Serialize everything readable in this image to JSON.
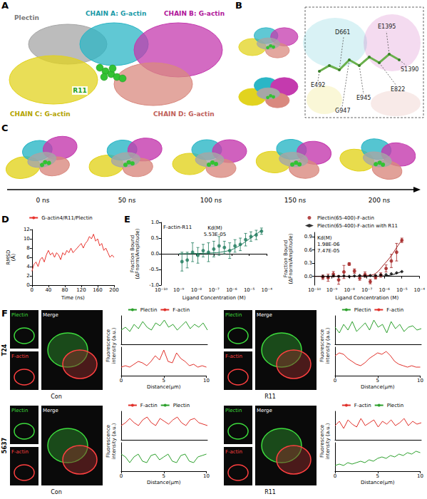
{
  "figure": {
    "panel_letters": [
      "A",
      "B",
      "C",
      "D",
      "E",
      "F"
    ],
    "A": {
      "labels": [
        "Plectin",
        "CHAIN A: G-actin",
        "CHAIN B: G-actin",
        "CHAIN C: G-actin",
        "R11",
        "CHAIN D: G-actin"
      ]
    },
    "B": {
      "residues": [
        "D661",
        "E1395",
        "S1390",
        "E492",
        "E822",
        "E945",
        "G947"
      ]
    },
    "C": {
      "times": [
        "0 ns",
        "50 ns",
        "100 ns",
        "150 ns",
        "200 ns"
      ]
    },
    "F": {
      "rows": [
        {
          "cell": "T24",
          "conditions": [
            "Con",
            "R11"
          ]
        },
        {
          "cell": "5637",
          "conditions": [
            "Con",
            "R11"
          ]
        }
      ],
      "channels": [
        "Plectin",
        "F-actin"
      ],
      "merge": "Merge"
    }
  },
  "chart_data": [
    {
      "type": "line",
      "x_label": "Time (ns)",
      "y_label": "RMSD (Å)",
      "xlim": [
        0,
        200
      ],
      "xticks": [
        0,
        40,
        80,
        120,
        160,
        200
      ],
      "ylim": [
        0,
        12
      ],
      "yticks": [
        0,
        2,
        4,
        6,
        8,
        10,
        12
      ],
      "legend": "top",
      "x": [
        0,
        5,
        10,
        15,
        20,
        25,
        30,
        35,
        40,
        45,
        50,
        55,
        60,
        65,
        70,
        75,
        80,
        85,
        90,
        95,
        100,
        105,
        110,
        115,
        120,
        125,
        130,
        135,
        140,
        145,
        150,
        155,
        160,
        165,
        170,
        175,
        180,
        185,
        190,
        195,
        200
      ],
      "series": [
        {
          "name": "G-actin4/R11/Plectin",
          "color": "#e8332e",
          "values": [
            3,
            4.5,
            5,
            4,
            5.5,
            6,
            5,
            6.5,
            7.5,
            6.5,
            7,
            6,
            7,
            6.5,
            5.5,
            7,
            6.5,
            7.5,
            7,
            8,
            7,
            7.5,
            8,
            8.5,
            9,
            8,
            9,
            9.5,
            10.5,
            10,
            11,
            9.5,
            10,
            8.5,
            9,
            7.5,
            8,
            7,
            6,
            6.5,
            6
          ]
        }
      ]
    },
    {
      "type": "scatter",
      "title": "F-actin-R11",
      "log": "x",
      "x_label": "Ligand Concentration (M)",
      "y_label": "Fraction Bound (ΔFnorm/Amplitude)",
      "xlim": [
        1e-10,
        0.0001
      ],
      "xticks": [
        {
          "value": 1e-10,
          "label": "10⁻¹⁰"
        },
        {
          "value": 1e-09,
          "label": "10⁻⁹"
        },
        {
          "value": 1e-08,
          "label": "10⁻⁸"
        },
        {
          "value": 1e-07,
          "label": "10⁻⁷"
        },
        {
          "value": 1e-06,
          "label": "10⁻⁶"
        },
        {
          "value": 1e-05,
          "label": "10⁻⁵"
        },
        {
          "value": 0.0001,
          "label": "10⁻⁴"
        }
      ],
      "ylim": [
        -1,
        1
      ],
      "yticks": [
        {
          "value": -1,
          "label": "-1.0"
        },
        -0.5,
        {
          "value": 0,
          "label": "0.0"
        },
        0.5,
        {
          "value": 1,
          "label": "1.0"
        }
      ],
      "annotations": [
        "Kd(M)",
        "5.53E-05"
      ],
      "series": [
        {
          "type": "scatter",
          "color": "#1e7b5c",
          "marker": "circle",
          "x": [
            1.53e-09,
            3.05e-09,
            6.1e-09,
            1.22e-08,
            2.44e-08,
            4.88e-08,
            9.77e-08,
            1.95e-07,
            3.91e-07,
            7.81e-07,
            1.56e-06,
            3.13e-06,
            6.25e-06,
            1.25e-05,
            2.5e-05,
            5e-05
          ],
          "values": [
            -0.25,
            -0.2,
            0.05,
            -0.05,
            0.1,
            0.05,
            0.15,
            0.25,
            0.2,
            0.1,
            0.25,
            0.3,
            0.45,
            0.55,
            0.6,
            0.72
          ],
          "errors": [
            0.3,
            0.25,
            0.3,
            0.25,
            0.2,
            0.3,
            0.25,
            0.3,
            0.2,
            0.25,
            0.2,
            0.2,
            0.2,
            0.15,
            0.15,
            0.1
          ]
        },
        {
          "type": "line",
          "color": "#1e7b5c",
          "x": [
            1e-09,
            1e-08,
            1e-07,
            3e-07,
            1e-06,
            3e-06,
            1e-05,
            3e-05,
            5e-05
          ],
          "values": [
            0,
            0.01,
            0.03,
            0.06,
            0.13,
            0.27,
            0.47,
            0.66,
            0.74
          ]
        }
      ]
    },
    {
      "type": "scatter",
      "log": "x",
      "x_label": "Ligand Concentration (M)",
      "y_label": "Fraction Bound (ΔFnorm/Amplitude)",
      "xlim": [
        1e-10,
        0.0001
      ],
      "xticks": [
        {
          "value": 1e-10,
          "label": "10⁻¹⁰"
        },
        {
          "value": 1e-09,
          "label": "10⁻⁹"
        },
        {
          "value": 1e-08,
          "label": "10⁻⁸"
        },
        {
          "value": 1e-07,
          "label": "10⁻⁷"
        },
        {
          "value": 1e-06,
          "label": "10⁻⁶"
        },
        {
          "value": 1e-05,
          "label": "10⁻⁵"
        },
        {
          "value": 0.0001,
          "label": "10⁻⁴"
        }
      ],
      "ylim": [
        -0.2,
        1
      ],
      "yticks": [
        {
          "value": 0,
          "label": "0.0"
        },
        0.3,
        0.6,
        0.9
      ],
      "legend": "top",
      "annotations": [
        "Kd(M)",
        "1.98E-06",
        "7.47E-05"
      ],
      "series": [
        {
          "type": "scatter",
          "name": "Plectin(65-400)-F-actin",
          "color": "#a01c1c",
          "marker": "circle",
          "x": [
            3.05e-10,
            6.1e-10,
            1.22e-09,
            2.44e-09,
            4.88e-09,
            9.77e-09,
            1.95e-08,
            3.91e-08,
            7.81e-08,
            1.56e-07,
            3.13e-07,
            6.25e-07,
            1.25e-06,
            2.5e-06,
            5e-06,
            1e-05
          ],
          "values": [
            -0.02,
            -0.03,
            0.05,
            -0.08,
            0.1,
            0.28,
            0.12,
            -0.04,
            0.04,
            -0.12,
            -0.02,
            0.03,
            0.18,
            0.35,
            0.55,
            0.82
          ],
          "errors": [
            0.05,
            0.08,
            0.06,
            0.1,
            0.15,
            0.03,
            0.05,
            0.05,
            0.06,
            0.05,
            0.04,
            0.05,
            0.08,
            0.15,
            0.2,
            0.05
          ]
        },
        {
          "type": "scatter",
          "name": "Plectin(65-400)-F-actin with R11",
          "color": "#000000",
          "marker": "diamond",
          "x": [
            3.05e-10,
            6.1e-10,
            1.22e-09,
            2.44e-09,
            4.88e-09,
            9.77e-09,
            1.95e-08,
            3.91e-08,
            7.81e-08,
            1.56e-07,
            3.13e-07,
            6.25e-07,
            1.25e-06,
            2.5e-06,
            5e-06,
            1e-05
          ],
          "values": [
            0,
            0,
            0.01,
            0,
            0.01,
            0,
            0.01,
            0.02,
            0.01,
            0.02,
            0.02,
            0.03,
            0.04,
            0.06,
            0.08,
            0.11
          ]
        },
        {
          "type": "line",
          "color": "#a01c1c",
          "x": [
            1e-10,
            1e-08,
            1e-07,
            3e-07,
            1e-06,
            2e-06,
            3e-06,
            6e-06,
            1e-05
          ],
          "values": [
            0,
            0,
            0.02,
            0.06,
            0.28,
            0.42,
            0.52,
            0.7,
            0.83
          ]
        },
        {
          "type": "line",
          "color": "#000000",
          "x": [
            1e-10,
            1e-07,
            1e-06,
            3e-06,
            1e-05
          ],
          "values": [
            0,
            0,
            0.01,
            0.04,
            0.11
          ]
        }
      ]
    },
    {
      "type": "line",
      "x_label": "Distance(μm)",
      "y_label": "Fluorescence intensity (a.u.)",
      "xlim": [
        0,
        10
      ],
      "xticks": [
        0,
        5,
        10
      ],
      "ylim": [
        0,
        1
      ],
      "y2lim": [
        0,
        1
      ],
      "tick_labels": "x",
      "legend": "top",
      "x": [
        0,
        0.5,
        1,
        1.5,
        2,
        2.5,
        3,
        3.5,
        4,
        4.5,
        5,
        5.5,
        6,
        6.5,
        7,
        7.5,
        8,
        8.5,
        9,
        9.5,
        10
      ],
      "series": [
        {
          "name": "Plectin",
          "color": "#2ca02c",
          "values": [
            0.5,
            0.6,
            0.45,
            0.7,
            0.55,
            0.8,
            0.6,
            0.5,
            0.75,
            0.65,
            0.85,
            0.6,
            0.7,
            0.5,
            0.65,
            0.8,
            0.55,
            0.7,
            0.6,
            0.75,
            0.5
          ]
        },
        {
          "name": "F-actin",
          "color": "#e0302a",
          "axis": "y2",
          "values": [
            0.3,
            0.35,
            0.3,
            0.4,
            0.5,
            0.45,
            0.35,
            0.5,
            0.7,
            0.55,
            0.9,
            0.5,
            0.45,
            0.8,
            0.6,
            0.5,
            0.35,
            0.4,
            0.3,
            0.35,
            0.3
          ]
        }
      ]
    },
    {
      "type": "line",
      "x_label": "Distance(μm)",
      "y_label": "Fluorescence intensity (a.u.)",
      "xlim": [
        0,
        10
      ],
      "xticks": [
        0,
        5,
        10
      ],
      "ylim": [
        0,
        1
      ],
      "y2lim": [
        0,
        1
      ],
      "tick_labels": "x",
      "legend": "top",
      "x": [
        0,
        0.5,
        1,
        1.5,
        2,
        2.5,
        3,
        3.5,
        4,
        4.5,
        5,
        5.5,
        6,
        6.5,
        7,
        7.5,
        8,
        8.5,
        9,
        9.5,
        10
      ],
      "series": [
        {
          "name": "Plectin",
          "color": "#2ca02c",
          "values": [
            0.6,
            0.4,
            0.7,
            0.5,
            0.8,
            0.45,
            0.6,
            0.75,
            0.5,
            0.85,
            0.6,
            0.7,
            0.4,
            0.8,
            0.55,
            0.7,
            0.45,
            0.6,
            0.65,
            0.5,
            0.55
          ]
        },
        {
          "name": "F-actin",
          "color": "#e0302a",
          "axis": "y2",
          "values": [
            0.7,
            0.8,
            0.75,
            0.6,
            0.5,
            0.4,
            0.35,
            0.45,
            0.6,
            0.7,
            0.8,
            0.75,
            0.85,
            0.7,
            0.5,
            0.4,
            0.35,
            0.3,
            0.35,
            0.3,
            0.3
          ]
        }
      ]
    },
    {
      "type": "line",
      "x_label": "Distance(μm)",
      "y_label": "Fluorescence intensity (a.u.)",
      "xlim": [
        0,
        10
      ],
      "xticks": [
        0,
        5,
        10
      ],
      "ylim": [
        0,
        1
      ],
      "y2lim": [
        0,
        1
      ],
      "tick_labels": "x",
      "legend": "top",
      "x": [
        0,
        0.5,
        1,
        1.5,
        2,
        2.5,
        3,
        3.5,
        4,
        4.5,
        5,
        5.5,
        6,
        6.5,
        7,
        7.5,
        8,
        8.5,
        9,
        9.5,
        10
      ],
      "series": [
        {
          "name": "F-actin",
          "color": "#e0302a",
          "values": [
            0.5,
            0.6,
            0.75,
            0.6,
            0.5,
            0.7,
            0.8,
            0.6,
            0.5,
            0.75,
            0.65,
            0.55,
            0.7,
            0.8,
            0.6,
            0.5,
            0.7,
            0.75,
            0.6,
            0.55,
            0.5
          ]
        },
        {
          "name": "Plectin",
          "color": "#2ca02c",
          "axis": "y2",
          "values": [
            0.6,
            0.5,
            0.3,
            0.5,
            0.6,
            0.35,
            0.3,
            0.55,
            0.6,
            0.4,
            0.5,
            0.6,
            0.35,
            0.3,
            0.55,
            0.6,
            0.35,
            0.3,
            0.5,
            0.55,
            0.6
          ]
        }
      ]
    },
    {
      "type": "line",
      "x_label": "Distance(μm)",
      "y_label": "Fluorescence intensity (a.u.)",
      "xlim": [
        0,
        10
      ],
      "xticks": [
        0,
        5,
        10
      ],
      "ylim": [
        0,
        1
      ],
      "y2lim": [
        0,
        1
      ],
      "tick_labels": "x",
      "legend": "top",
      "x": [
        0,
        0.5,
        1,
        1.5,
        2,
        2.5,
        3,
        3.5,
        4,
        4.5,
        5,
        5.5,
        6,
        6.5,
        7,
        7.5,
        8,
        8.5,
        9,
        9.5,
        10
      ],
      "series": [
        {
          "name": "F-actin",
          "color": "#e0302a",
          "values": [
            0.5,
            0.65,
            0.4,
            0.7,
            0.55,
            0.45,
            0.75,
            0.5,
            0.6,
            0.7,
            0.45,
            0.65,
            0.55,
            0.7,
            0.5,
            0.6,
            0.75,
            0.5,
            0.65,
            0.55,
            0.6
          ]
        },
        {
          "name": "Plectin",
          "color": "#2ca02c",
          "axis": "y2",
          "values": [
            0.2,
            0.25,
            0.2,
            0.3,
            0.25,
            0.3,
            0.35,
            0.3,
            0.4,
            0.35,
            0.45,
            0.5,
            0.45,
            0.55,
            0.5,
            0.6,
            0.55,
            0.65,
            0.6,
            0.7,
            0.65
          ]
        }
      ]
    }
  ]
}
